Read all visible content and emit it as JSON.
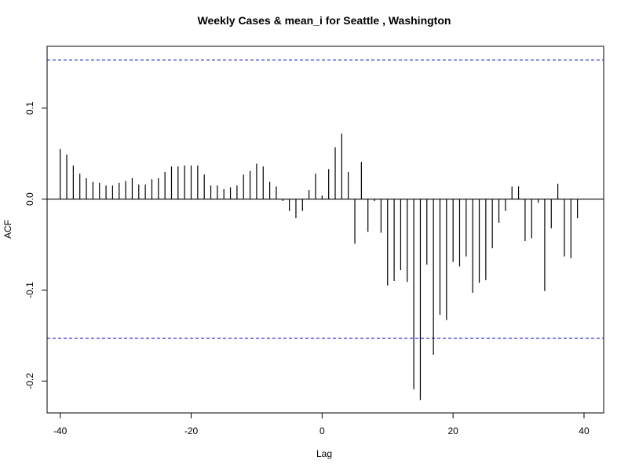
{
  "chart_data": {
    "type": "bar",
    "title": "Weekly Cases & mean_i for Seattle , Washington",
    "xlabel": "Lag",
    "ylabel": "ACF",
    "xlim": [
      -42,
      43
    ],
    "ylim": [
      -0.235,
      0.168
    ],
    "x_ticks": [
      -40,
      -20,
      0,
      20,
      40
    ],
    "x_tick_labels": [
      "-40",
      "-20",
      "0",
      "20",
      "40"
    ],
    "y_ticks": [
      -0.2,
      -0.1,
      0.0,
      0.1
    ],
    "y_tick_labels": [
      "-0.2",
      "-0.1",
      "0.0",
      "0.1"
    ],
    "confidence_bounds": [
      0.153,
      -0.153
    ],
    "confidence_line_color": "#0000cc",
    "bar_color": "#000000",
    "zero_line_color": "#000000",
    "grid": false,
    "legend": "none",
    "lags": [
      -40,
      -39,
      -38,
      -37,
      -36,
      -35,
      -34,
      -33,
      -32,
      -31,
      -30,
      -29,
      -28,
      -27,
      -26,
      -25,
      -24,
      -23,
      -22,
      -21,
      -20,
      -19,
      -18,
      -17,
      -16,
      -15,
      -14,
      -13,
      -12,
      -11,
      -10,
      -9,
      -8,
      -7,
      -6,
      -5,
      -4,
      -3,
      -2,
      -1,
      0,
      1,
      2,
      3,
      4,
      5,
      6,
      7,
      8,
      9,
      10,
      11,
      12,
      13,
      14,
      15,
      16,
      17,
      18,
      19,
      20,
      21,
      22,
      23,
      24,
      25,
      26,
      27,
      28,
      29,
      30,
      31,
      32,
      33,
      34,
      35,
      36,
      37,
      38,
      39
    ],
    "acf": [
      0.055,
      0.049,
      0.037,
      0.028,
      0.023,
      0.019,
      0.018,
      0.015,
      0.015,
      0.018,
      0.02,
      0.023,
      0.016,
      0.016,
      0.022,
      0.023,
      0.03,
      0.036,
      0.036,
      0.037,
      0.037,
      0.037,
      0.027,
      0.015,
      0.015,
      0.011,
      0.013,
      0.015,
      0.027,
      0.031,
      0.039,
      0.036,
      0.019,
      0.014,
      -0.002,
      -0.013,
      -0.021,
      -0.013,
      0.01,
      0.028,
      0.004,
      0.033,
      0.057,
      0.072,
      0.03,
      -0.049,
      0.041,
      -0.036,
      -0.002,
      -0.037,
      -0.095,
      -0.09,
      -0.078,
      -0.091,
      -0.209,
      -0.221,
      -0.072,
      -0.171,
      -0.127,
      -0.133,
      -0.069,
      -0.074,
      -0.063,
      -0.103,
      -0.092,
      -0.089,
      -0.054,
      -0.026,
      -0.013,
      0.014,
      0.014,
      -0.046,
      -0.043,
      -0.004,
      -0.101,
      -0.032,
      0.017,
      -0.063,
      -0.065,
      -0.021
    ]
  }
}
